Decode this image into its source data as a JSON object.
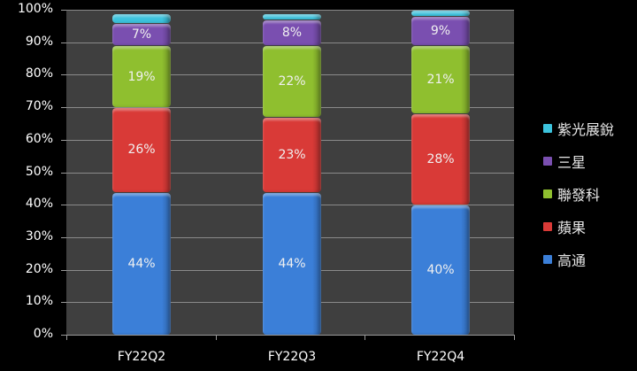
{
  "chart_data": {
    "type": "bar",
    "stacked": true,
    "percent": true,
    "categories": [
      "FY22Q2",
      "FY22Q3",
      "FY22Q4"
    ],
    "series": [
      {
        "name": "高通",
        "color": "#3b7fd8",
        "values": [
          44,
          44,
          40
        ]
      },
      {
        "name": "蘋果",
        "color": "#d93a37",
        "values": [
          26,
          23,
          28
        ]
      },
      {
        "name": "聯發科",
        "color": "#8fbf2f",
        "values": [
          19,
          22,
          21
        ]
      },
      {
        "name": "三星",
        "color": "#7a4fb0",
        "values": [
          7,
          8,
          9
        ]
      },
      {
        "name": "紫光展銳",
        "color": "#3cc3dd",
        "values": [
          3,
          2,
          2
        ]
      }
    ],
    "data_labels": [
      [
        "44%",
        "26%",
        "19%",
        "7%",
        ""
      ],
      [
        "44%",
        "23%",
        "22%",
        "8%",
        ""
      ],
      [
        "40%",
        "28%",
        "21%",
        "9%",
        ""
      ]
    ],
    "title": "",
    "xlabel": "",
    "ylabel": "",
    "ylim": [
      0,
      100
    ],
    "yticks": [
      "0%",
      "10%",
      "20%",
      "30%",
      "40%",
      "50%",
      "60%",
      "70%",
      "80%",
      "90%",
      "100%"
    ],
    "grid": true,
    "legend_position": "right",
    "legend_order": [
      "紫光展銳",
      "三星",
      "聯發科",
      "蘋果",
      "高通"
    ]
  }
}
